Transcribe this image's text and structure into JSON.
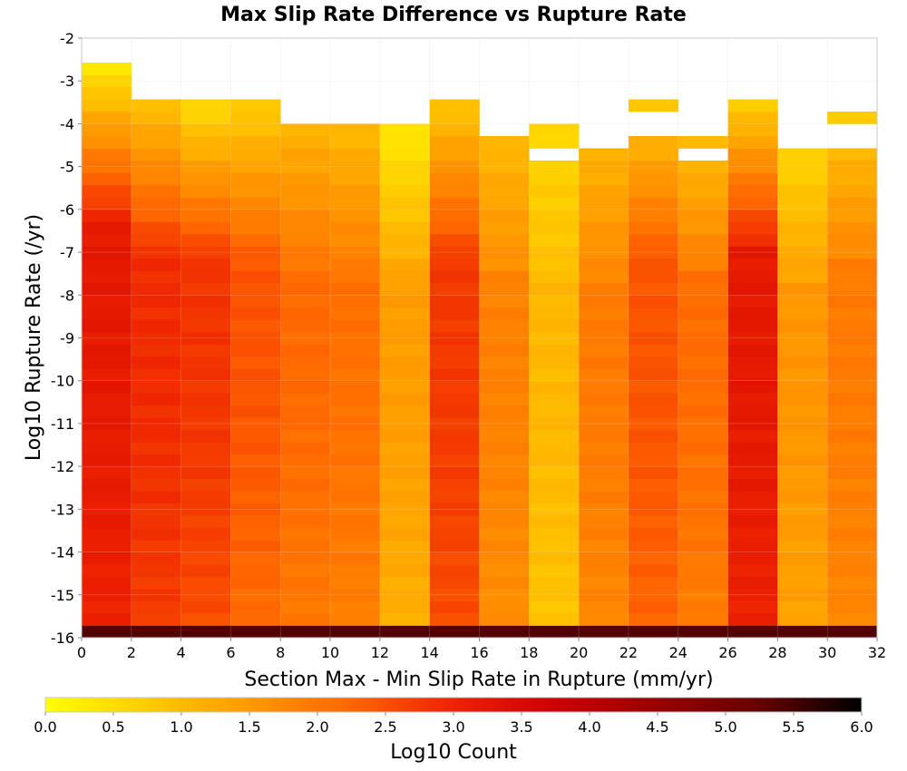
{
  "chart_data": {
    "type": "heatmap",
    "title": "Max Slip Rate Difference vs Rupture Rate",
    "xlabel": "Section Max - Min Slip Rate in Rupture (mm/yr)",
    "ylabel": "Log10 Rupture Rate (/yr)",
    "xlim": [
      0,
      32
    ],
    "ylim": [
      -16,
      -2
    ],
    "x_ticks": [
      "0",
      "2",
      "4",
      "6",
      "8",
      "10",
      "12",
      "14",
      "16",
      "18",
      "20",
      "22",
      "24",
      "26",
      "28",
      "30",
      "32"
    ],
    "y_ticks": [
      "-2",
      "-3",
      "-4",
      "-5",
      "-6",
      "-7",
      "-8",
      "-9",
      "-10",
      "-11",
      "-12",
      "-13",
      "-14",
      "-15",
      "-16"
    ],
    "x_bin_width": 2,
    "y_bin_height": 0.2857,
    "grid": true,
    "colorbar": {
      "label": "Log10 Count",
      "range": [
        0,
        6
      ],
      "ticks": [
        "0.0",
        "0.5",
        "1.0",
        "1.5",
        "2.0",
        "2.5",
        "3.0",
        "3.5",
        "4.0",
        "4.5",
        "5.0",
        "5.5",
        "6.0"
      ],
      "colors": [
        "#ffff00",
        "#ffcc00",
        "#ff9900",
        "#ff6600",
        "#ee2200",
        "#cc0000",
        "#990000",
        "#660000",
        "#000000"
      ]
    },
    "columns": [
      {
        "x_start": 0,
        "top": -2.7,
        "base": 3.0,
        "top_value": 0.3,
        "peak": 3.2
      },
      {
        "x_start": 2,
        "top": -3.6,
        "base": 2.7,
        "top_value": 0.9,
        "peak": 2.9
      },
      {
        "x_start": 4,
        "top": -3.6,
        "base": 2.5,
        "top_value": 0.5,
        "peak": 2.8
      },
      {
        "x_start": 6,
        "top": -3.6,
        "base": 2.15,
        "top_value": 0.7,
        "peak": 2.45
      },
      {
        "x_start": 8,
        "top": -4.1,
        "base": 1.95,
        "top_value": 1.1,
        "peak": 2.2
      },
      {
        "x_start": 10,
        "top": -4.1,
        "base": 1.85,
        "top_value": 1.0,
        "peak": 2.1
      },
      {
        "x_start": 12,
        "top": -4.1,
        "base": 1.15,
        "top_value": 0.3,
        "peak": 1.45
      },
      {
        "x_start": 14,
        "top": -3.6,
        "base": 2.5,
        "top_value": 0.8,
        "peak": 2.75
      },
      {
        "x_start": 16,
        "top": -4.4,
        "base": 1.65,
        "top_value": 1.0,
        "peak": 1.85
      },
      {
        "x_start": 18,
        "top": -4.1,
        "base": 0.85,
        "top_value": 0.6,
        "peak": 1.05
      },
      {
        "x_start": 20,
        "top": -4.7,
        "base": 1.75,
        "top_value": 1.1,
        "peak": 1.95
      },
      {
        "x_start": 22,
        "top": -3.6,
        "base": 2.25,
        "top_value": 0.7,
        "peak": 2.45
      },
      {
        "x_start": 24,
        "top": -4.4,
        "base": 1.9,
        "top_value": 0.9,
        "peak": 2.15
      },
      {
        "x_start": 26,
        "top": -3.6,
        "base": 3.0,
        "top_value": 0.7,
        "peak": 3.2
      },
      {
        "x_start": 28,
        "top": -4.7,
        "base": 1.35,
        "top_value": 0.6,
        "peak": 1.55
      },
      {
        "x_start": 30,
        "top": -3.9,
        "base": 1.75,
        "top_value": 0.8,
        "peak": 1.95
      }
    ],
    "empty_cells": [
      {
        "x_start": 18,
        "y": -5.0
      },
      {
        "x_start": 22,
        "y": -4.1
      },
      {
        "x_start": 22,
        "y": -4.4
      },
      {
        "x_start": 24,
        "y": -5.0
      },
      {
        "x_start": 30,
        "y": -4.4
      },
      {
        "x_start": 30,
        "y": -4.7
      }
    ],
    "bottom_row": {
      "y": -16.0,
      "value": 5.4
    }
  }
}
